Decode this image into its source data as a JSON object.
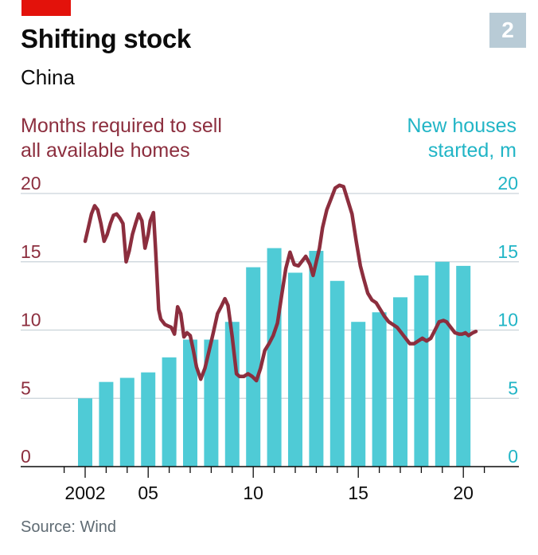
{
  "header": {
    "title": "Shifting stock",
    "subtitle": "China",
    "badge": "2"
  },
  "footer": {
    "source": "Source: Wind"
  },
  "colors": {
    "line": "#8c2e3e",
    "bars": "#4fcbd6",
    "accent": "#e3120b",
    "badge": "#b8cbd6"
  },
  "chart_data": {
    "type": "bar+line",
    "left_axis_label_lines": [
      "Months required to sell",
      "all available homes"
    ],
    "right_axis_label_lines": [
      "New houses",
      "started, m"
    ],
    "ylim": [
      0,
      20
    ],
    "left_ticks": [
      "20",
      "15",
      "10",
      "5",
      "0"
    ],
    "right_ticks": [
      "20",
      "15",
      "10",
      "5",
      "0"
    ],
    "tick_values": [
      20,
      15,
      10,
      5,
      0
    ],
    "x_ticks": [
      {
        "label": "2002",
        "year": 2002
      },
      {
        "label": "05",
        "year": 2005
      },
      {
        "label": "10",
        "year": 2010
      },
      {
        "label": "15",
        "year": 2015
      },
      {
        "label": "20",
        "year": 2020
      }
    ],
    "bars": {
      "name": "New houses started, m",
      "years": [
        2002,
        2003,
        2004,
        2005,
        2006,
        2007,
        2008,
        2009,
        2010,
        2011,
        2012,
        2013,
        2014,
        2015,
        2016,
        2017,
        2018,
        2019,
        2020
      ],
      "values": [
        5.0,
        6.2,
        6.5,
        6.9,
        8.0,
        9.3,
        9.3,
        10.6,
        14.6,
        16.0,
        14.2,
        15.8,
        13.6,
        10.6,
        11.3,
        12.4,
        14.0,
        15.0,
        14.7
      ]
    },
    "line": {
      "name": "Months required to sell all available homes",
      "x": [
        2002.0,
        2002.15,
        2002.3,
        2002.45,
        2002.6,
        2002.75,
        2002.9,
        2003.05,
        2003.2,
        2003.35,
        2003.5,
        2003.65,
        2003.8,
        2003.95,
        2004.1,
        2004.25,
        2004.4,
        2004.55,
        2004.7,
        2004.85,
        2005.0,
        2005.1,
        2005.25,
        2005.35,
        2005.5,
        2005.6,
        2005.8,
        2005.95,
        2006.1,
        2006.25,
        2006.4,
        2006.55,
        2006.7,
        2006.85,
        2007.0,
        2007.15,
        2007.3,
        2007.5,
        2007.7,
        2007.9,
        2008.1,
        2008.3,
        2008.5,
        2008.65,
        2008.8,
        2009.0,
        2009.2,
        2009.35,
        2009.55,
        2009.75,
        2009.95,
        2010.15,
        2010.35,
        2010.55,
        2010.75,
        2010.95,
        2011.15,
        2011.35,
        2011.55,
        2011.75,
        2011.95,
        2012.15,
        2012.3,
        2012.5,
        2012.7,
        2012.85,
        2013.0,
        2013.15,
        2013.3,
        2013.5,
        2013.7,
        2013.9,
        2014.1,
        2014.3,
        2014.5,
        2014.7,
        2014.9,
        2015.1,
        2015.25,
        2015.45,
        2015.65,
        2015.85,
        2016.05,
        2016.25,
        2016.45,
        2016.65,
        2016.85,
        2017.05,
        2017.25,
        2017.45,
        2017.65,
        2017.85,
        2018.05,
        2018.25,
        2018.45,
        2018.65,
        2018.85,
        2019.05,
        2019.2,
        2019.4,
        2019.6,
        2019.8,
        2019.95,
        2020.1,
        2020.25,
        2020.45,
        2020.6
      ],
      "y": [
        16.5,
        17.5,
        18.5,
        19.1,
        18.8,
        17.8,
        16.5,
        17.0,
        17.8,
        18.4,
        18.5,
        18.2,
        17.8,
        15.0,
        15.8,
        17.0,
        17.8,
        18.5,
        18.0,
        16.0,
        17.0,
        18.0,
        18.6,
        16.0,
        11.5,
        10.8,
        10.4,
        10.3,
        10.2,
        9.7,
        11.7,
        11.2,
        9.5,
        9.8,
        9.6,
        8.5,
        7.3,
        6.4,
        7.2,
        8.5,
        9.8,
        11.2,
        11.8,
        12.3,
        11.8,
        9.5,
        6.8,
        6.6,
        6.6,
        6.8,
        6.6,
        6.3,
        7.2,
        8.5,
        9.0,
        9.6,
        10.5,
        12.5,
        14.5,
        15.7,
        14.8,
        14.7,
        15.0,
        15.4,
        14.8,
        14.0,
        15.0,
        16.0,
        17.5,
        18.8,
        19.6,
        20.4,
        20.6,
        20.5,
        19.5,
        18.5,
        16.5,
        14.7,
        13.8,
        12.7,
        12.2,
        12.0,
        11.5,
        11.0,
        10.6,
        10.4,
        10.2,
        9.8,
        9.4,
        9.0,
        9.0,
        9.2,
        9.4,
        9.2,
        9.4,
        10.0,
        10.6,
        10.7,
        10.6,
        10.2,
        9.8,
        9.7,
        9.7,
        9.8,
        9.6,
        9.8,
        9.9
      ]
    }
  }
}
